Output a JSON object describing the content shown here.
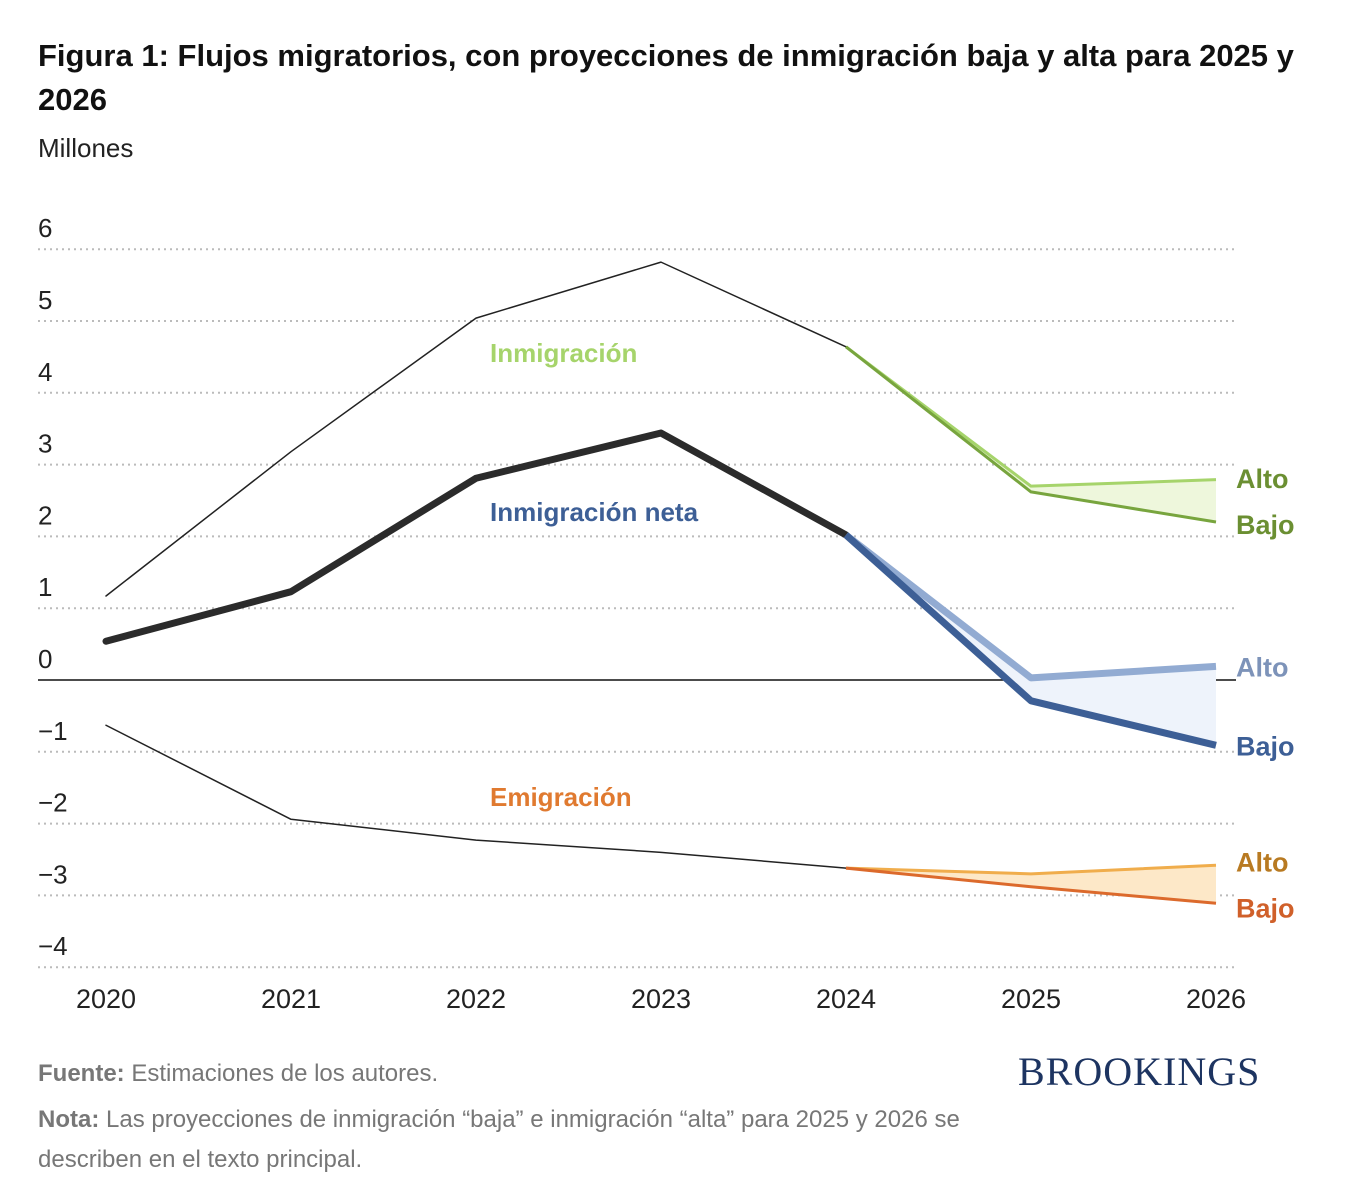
{
  "title": "Figura 1: Flujos migratorios, con proyecciones de inmigración baja y alta para 2025 y 2026",
  "unit": "Millones",
  "chart_data": {
    "type": "line",
    "x": [
      "2020",
      "2021",
      "2022",
      "2023",
      "2024",
      "2025",
      "2026"
    ],
    "ylim": [
      -4,
      6
    ],
    "yticks": [
      "−4",
      "−3",
      "−2",
      "−1",
      "0",
      "1",
      "2",
      "3",
      "4",
      "5",
      "6"
    ],
    "grid": true,
    "series": [
      {
        "name": "Inmigración",
        "color": "#a6d46b",
        "historical": [
          1.17,
          3.18,
          5.04,
          5.82,
          4.64
        ],
        "alto": {
          "label": "Alto",
          "values": [
            4.64,
            2.7,
            2.79
          ],
          "color": "#a6d46b",
          "label_color": "#6b8f32"
        },
        "bajo": {
          "label": "Bajo",
          "values": [
            4.64,
            2.62,
            2.2
          ],
          "color": "#78a53e",
          "label_color": "#6b8f32"
        },
        "fill": "#eef7dc"
      },
      {
        "name": "Inmigración neta",
        "color": "#3d5f96",
        "historical": [
          0.54,
          1.23,
          2.81,
          3.44,
          2.02
        ],
        "alto": {
          "label": "Alto",
          "values": [
            2.02,
            0.03,
            0.19
          ],
          "color": "#92abd2",
          "label_color": "#7d93b9"
        },
        "bajo": {
          "label": "Bajo",
          "values": [
            2.02,
            -0.29,
            -0.91
          ],
          "color": "#3d5f96",
          "label_color": "#3d5f96"
        },
        "fill": "#eef3fb"
      },
      {
        "name": "Emigración",
        "color": "#e07a30",
        "historical": [
          -0.63,
          -1.94,
          -2.23,
          -2.4,
          -2.62
        ],
        "alto": {
          "label": "Alto",
          "values": [
            -2.62,
            -2.7,
            -2.58
          ],
          "color": "#f0ad4c",
          "label_color": "#b87a22"
        },
        "bajo": {
          "label": "Bajo",
          "values": [
            -2.62,
            -2.88,
            -3.11
          ],
          "color": "#dc6a2c",
          "label_color": "#d0602a"
        },
        "fill": "#fde8c8"
      }
    ]
  },
  "footer": {
    "source_label": "Fuente:",
    "source": " Estimaciones de los autores.",
    "note_label": "Nota:",
    "note": " Las proyecciones de inmigración “baja” e inmigración “alta” para 2025 y 2026 se describen en el texto principal."
  },
  "logo": "BROOKINGS"
}
